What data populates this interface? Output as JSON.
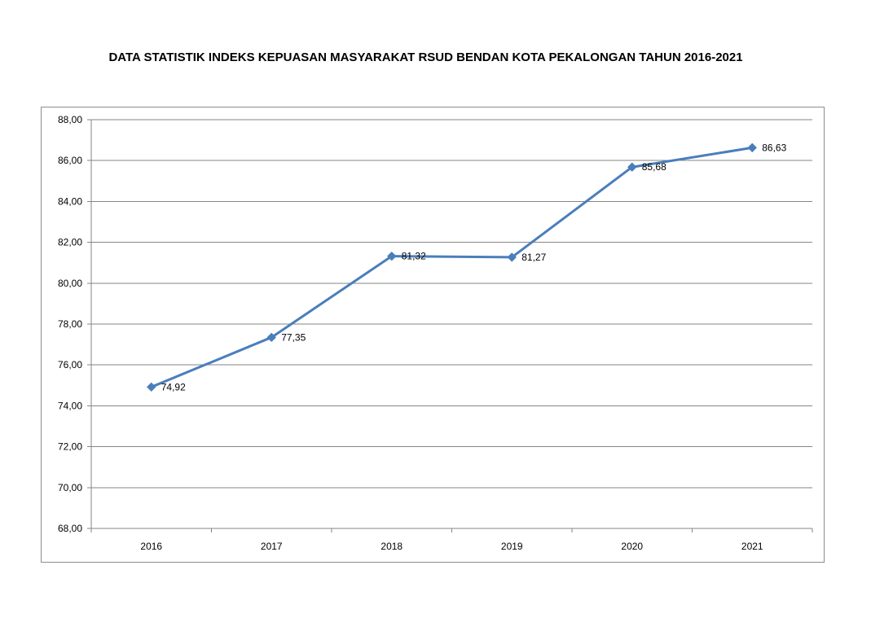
{
  "title": "DATA STATISTIK INDEKS KEPUASAN MASYARAKAT RSUD BENDAN KOTA PEKALONGAN TAHUN 2016-2021",
  "chart_data": {
    "type": "line",
    "title": "DATA STATISTIK INDEKS KEPUASAN MASYARAKAT RSUD BENDAN KOTA PEKALONGAN TAHUN 2016-2021",
    "xlabel": "",
    "ylabel": "",
    "categories": [
      "2016",
      "2017",
      "2018",
      "2019",
      "2020",
      "2021"
    ],
    "series": [
      {
        "values": [
          74.92,
          77.35,
          81.32,
          81.27,
          85.68,
          86.63
        ],
        "labels": [
          "74,92",
          "77,35",
          "81,32",
          "81,27",
          "85,68",
          "86,63"
        ],
        "color": "#4a7ebb",
        "marker": "diamond"
      }
    ],
    "ylim": [
      68,
      88
    ],
    "yticks": [
      68,
      70,
      72,
      74,
      76,
      78,
      80,
      82,
      84,
      86,
      88
    ],
    "ytick_labels": [
      "68,00",
      "70,00",
      "72,00",
      "74,00",
      "76,00",
      "78,00",
      "80,00",
      "82,00",
      "84,00",
      "86,00",
      "88,00"
    ],
    "grid": true,
    "legend": "none",
    "gridline_color": "#868686",
    "axis_color": "#868686"
  }
}
